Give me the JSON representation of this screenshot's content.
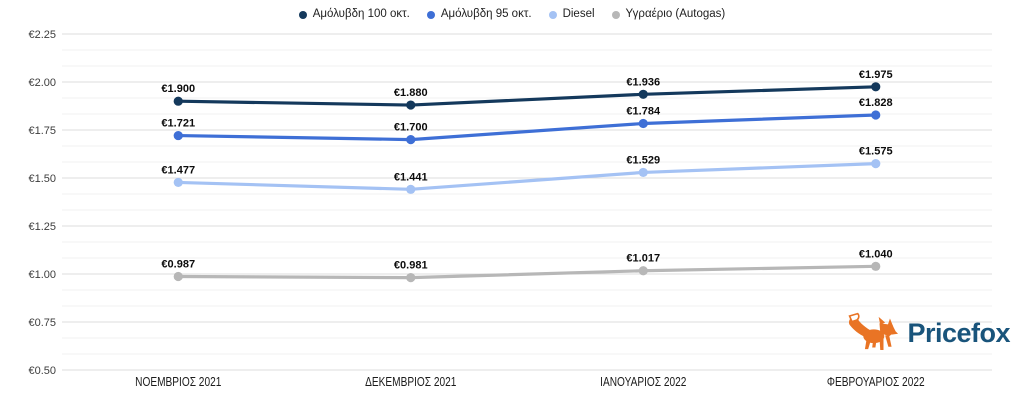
{
  "chart_data": {
    "type": "line",
    "title": "",
    "categories": [
      "ΝΟΕΜΒΡΙΟΣ 2021",
      "ΔΕΚΕΜΒΡΙΟΣ 2021",
      "ΙΑΝΟΥΑΡΙΟΣ 2022",
      "ΦΕΒΡΟΥΑΡΙΟΣ 2022"
    ],
    "series": [
      {
        "name": "Αμόλυβδη 100 οκτ.",
        "color": "#14395c",
        "values": [
          1.9,
          1.88,
          1.936,
          1.975
        ],
        "labels": [
          "€1.900",
          "€1.880",
          "€1.936",
          "€1.975"
        ]
      },
      {
        "name": "Αμόλυβδη 95 οκτ.",
        "color": "#3e6fd6",
        "values": [
          1.721,
          1.7,
          1.784,
          1.828
        ],
        "labels": [
          "€1.721",
          "€1.700",
          "€1.784",
          "€1.828"
        ]
      },
      {
        "name": "Diesel",
        "color": "#a4c2f4",
        "values": [
          1.477,
          1.441,
          1.529,
          1.575
        ],
        "labels": [
          "€1.477",
          "€1.441",
          "€1.529",
          "€1.575"
        ]
      },
      {
        "name": "Υγραέριο (Autogas)",
        "color": "#b7b7b7",
        "values": [
          0.987,
          0.981,
          1.017,
          1.04
        ],
        "labels": [
          "€0.987",
          "€0.981",
          "€1.017",
          "€1.040"
        ]
      }
    ],
    "xlabel": "",
    "ylabel": "",
    "ylim": [
      0.5,
      2.25
    ],
    "y_ticks": [
      2.25,
      2.0,
      1.75,
      1.5,
      1.25,
      1.0,
      0.75,
      0.5
    ],
    "y_tick_labels": [
      "€2.25",
      "€2.00",
      "€1.75",
      "€1.50",
      "€1.25",
      "€1.00",
      "€0.75",
      "€0.50"
    ],
    "currency": "€",
    "grid": "major and minor horizontal gridlines, 2 minors per major interval",
    "legend_position": "top-center"
  },
  "branding": {
    "logo_text": "Pricefox",
    "logo_text_color": "#19547b",
    "fox_color": "#e97425"
  }
}
